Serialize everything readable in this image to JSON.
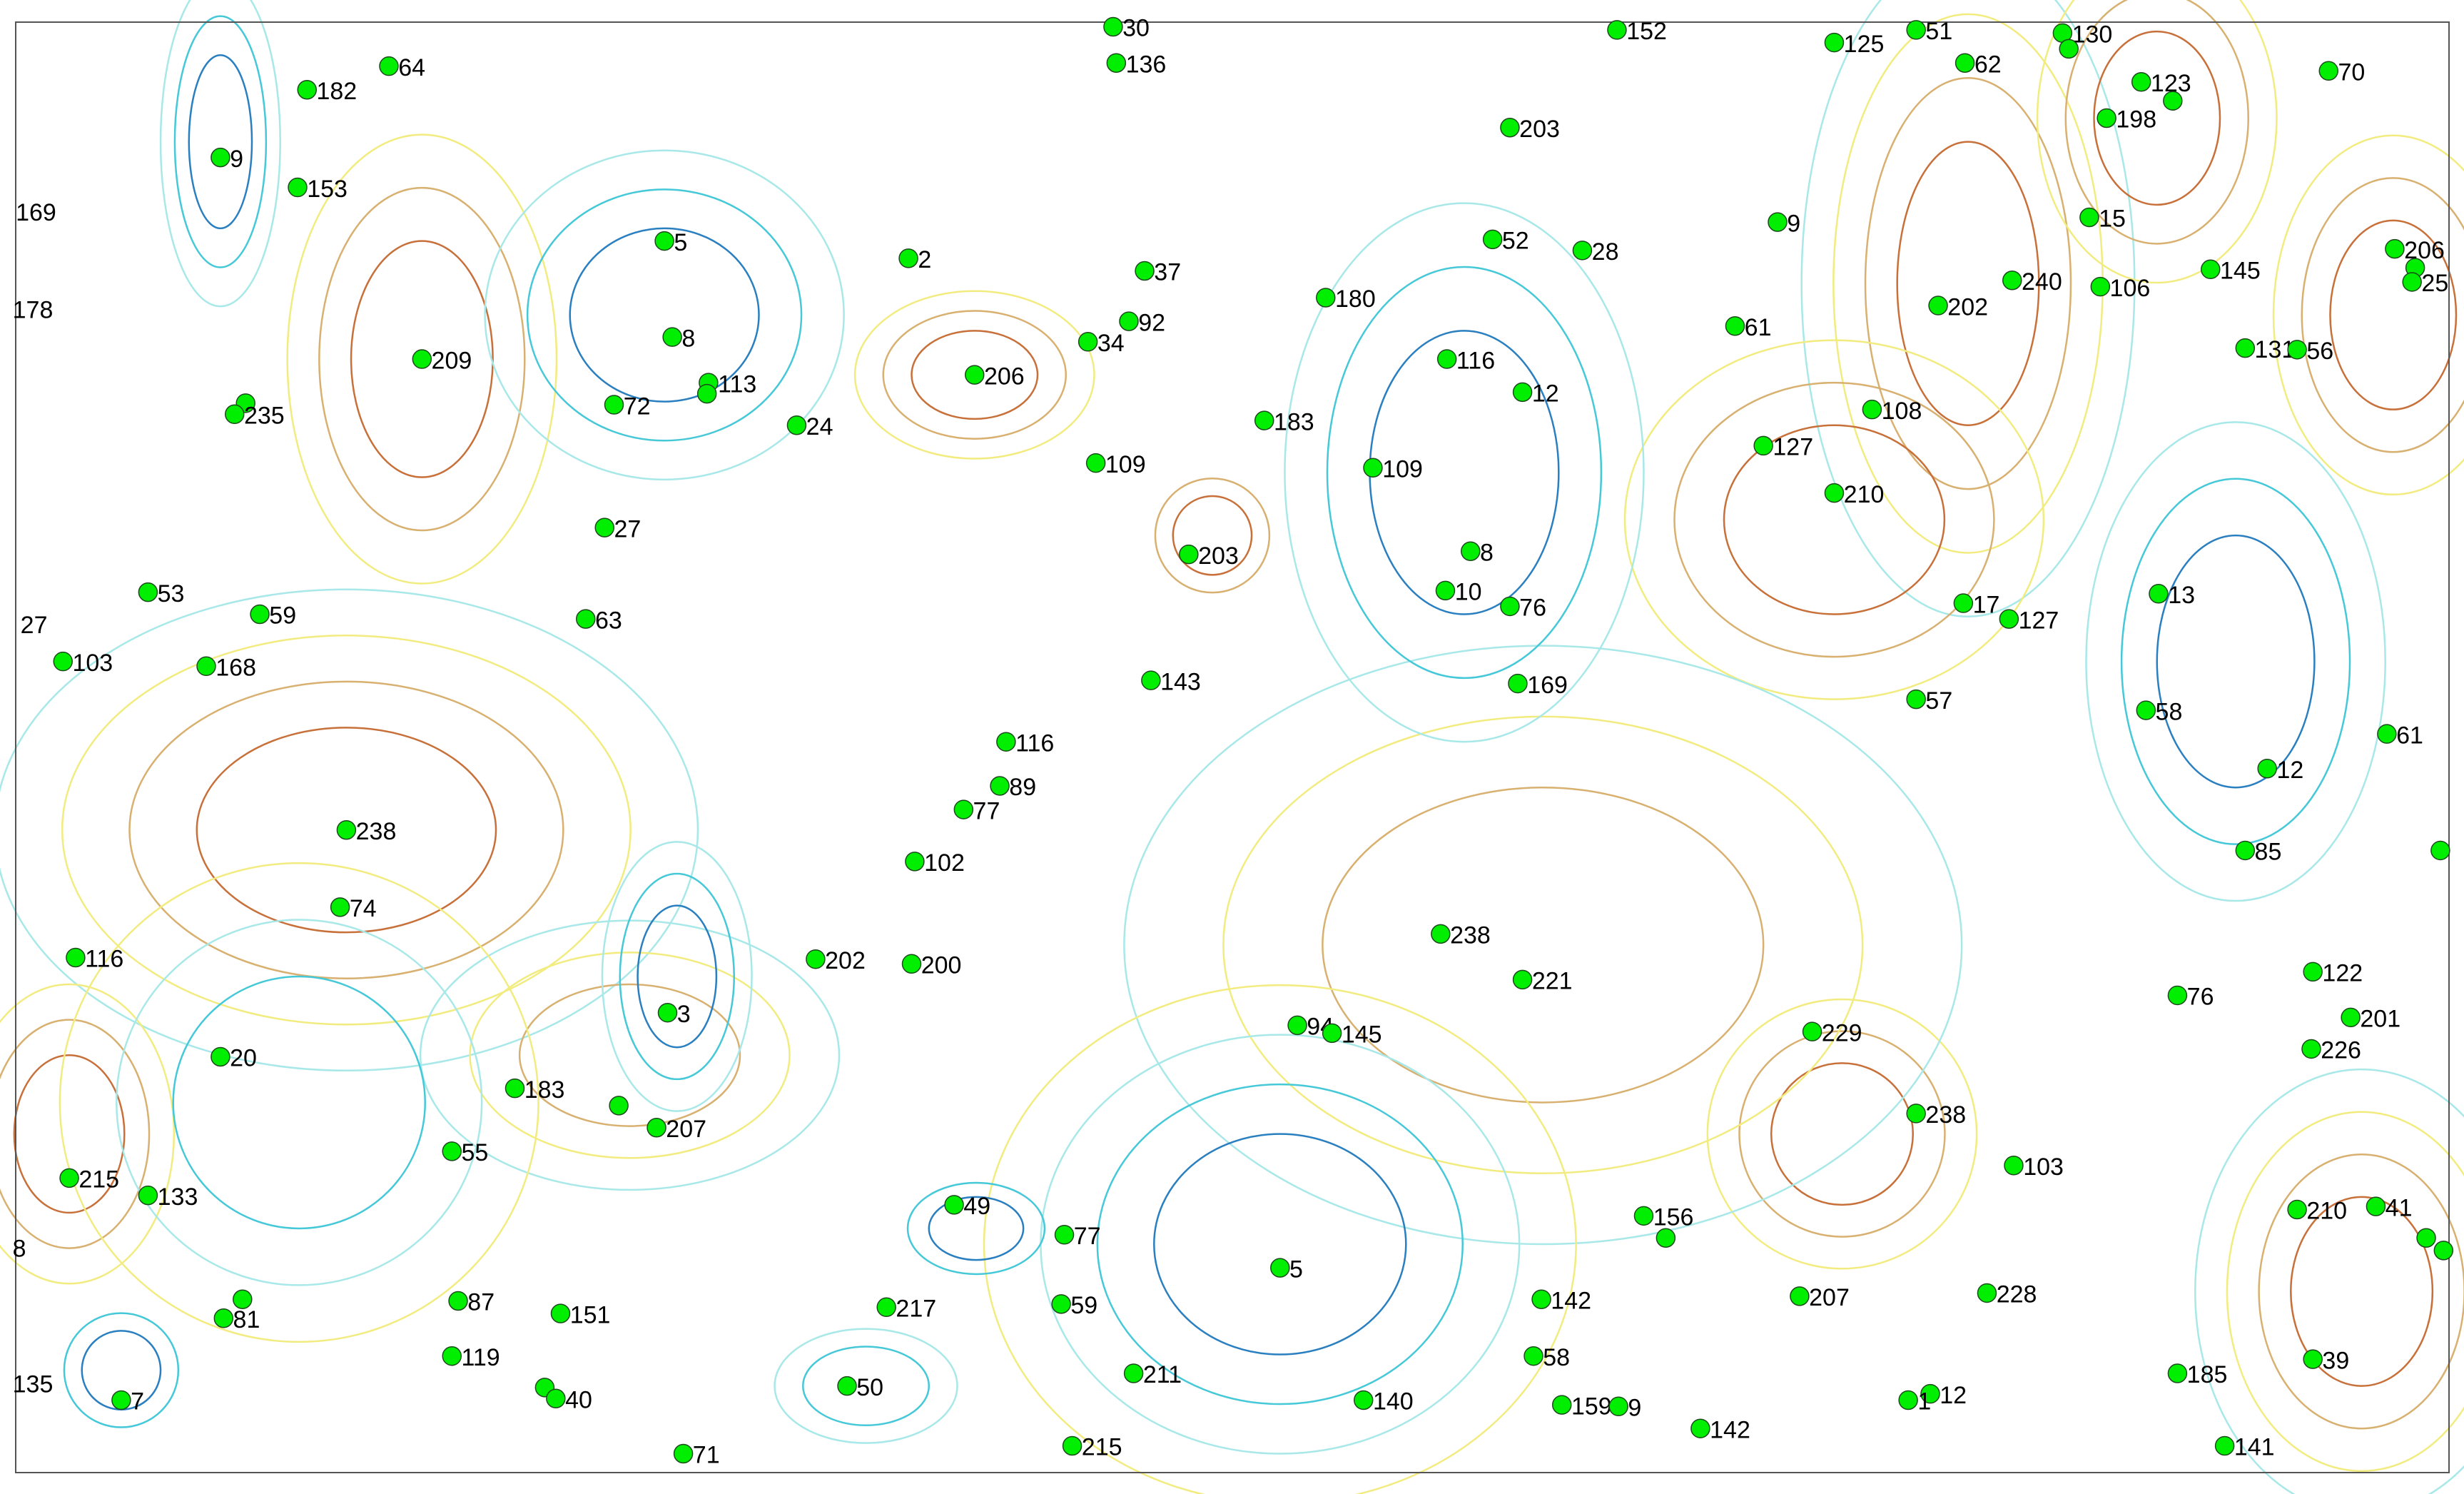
{
  "map": {
    "contour_colors": [
      "#2a7fc0",
      "#45c8d8",
      "#a8e8e8",
      "#f2ec80",
      "#d8b070",
      "#c8703a"
    ],
    "point_color": "#00ee00",
    "point_labels": [
      "30",
      "136",
      "152",
      "125",
      "51",
      "130",
      "",
      "62",
      "123",
      "",
      "198",
      "70",
      "64",
      "182",
      "9",
      "153",
      "203",
      "5",
      "2",
      "37",
      "52",
      "28",
      "9",
      "15",
      "145",
      "206",
      "",
      "25",
      "240",
      "106",
      "202",
      "180",
      "92",
      "34",
      "61",
      "8",
      "209",
      "116",
      "131",
      "56",
      "113",
      "",
      "",
      "235",
      "72",
      "206",
      "12",
      "24",
      "183",
      "108",
      "127",
      "109",
      "109",
      "210",
      "27",
      "203",
      "8",
      "10",
      "76",
      "17",
      "127",
      "13",
      "53",
      "59",
      "63",
      "103",
      "168",
      "143",
      "169",
      "57",
      "58",
      "61",
      "116",
      "89",
      "12",
      "77",
      "238",
      "85",
      "",
      "102",
      "74",
      "238",
      "116",
      "202",
      "200",
      "221",
      "122",
      "76",
      "3",
      "201",
      "94",
      "145",
      "229",
      "226",
      "20",
      "183",
      "",
      "207",
      "238",
      "55",
      "103",
      "215",
      "133",
      "49",
      "210",
      "41",
      "156",
      "",
      "",
      "",
      "77",
      "5",
      "",
      "81",
      "87",
      "151",
      "217",
      "59",
      "142",
      "207",
      "228",
      "119",
      "58",
      "211",
      "185",
      "39",
      "",
      "40",
      "50",
      "7",
      "140",
      "159",
      "9",
      "12",
      "1",
      "142",
      "215",
      "141",
      "71"
    ],
    "edge_labels": [
      "169",
      "178",
      "27",
      "8",
      "135"
    ]
  }
}
